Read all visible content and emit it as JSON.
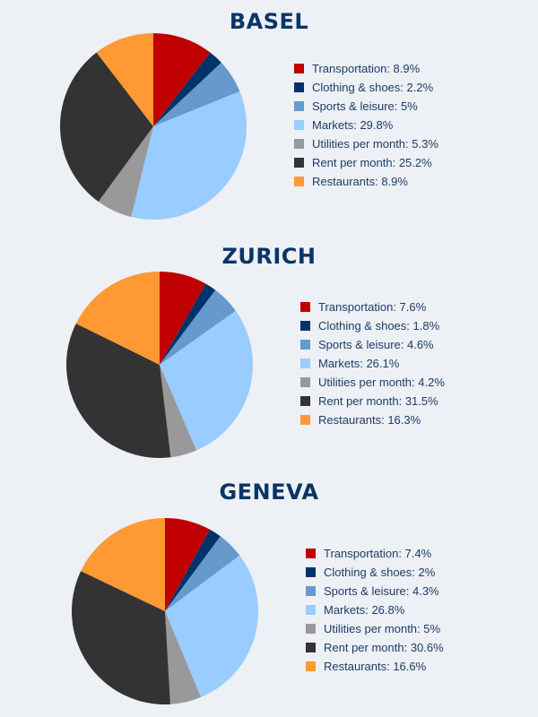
{
  "chart_data": [
    {
      "type": "pie",
      "title": "BASEL",
      "labels": [
        "Transportation",
        "Clothing & shoes",
        "Sports & leisure",
        "Markets",
        "Utilities per month",
        "Rent per month",
        "Restaurants"
      ],
      "values": [
        8.9,
        2.2,
        5,
        29.8,
        5.3,
        25.2,
        8.9
      ],
      "legend_texts": [
        "Transportation: 8.9%",
        "Clothing & shoes: 2.2%",
        "Sports & leisure: 5%",
        "Markets: 29.8%",
        "Utilities per month: 5.3%",
        "Rent per month: 25.2%",
        "Restaurants: 8.9%"
      ],
      "legend_position": "right"
    },
    {
      "type": "pie",
      "title": "ZURICH",
      "labels": [
        "Transportation",
        "Clothing & shoes",
        "Sports & leisure",
        "Markets",
        "Utilities per month",
        "Rent per month",
        "Restaurants"
      ],
      "values": [
        7.6,
        1.8,
        4.6,
        26.1,
        4.2,
        31.5,
        16.3
      ],
      "legend_texts": [
        "Transportation: 7.6%",
        "Clothing & shoes: 1.8%",
        "Sports & leisure: 4.6%",
        "Markets: 26.1%",
        "Utilities per month: 4.2%",
        "Rent per month: 31.5%",
        "Restaurants: 16.3%"
      ],
      "legend_position": "right"
    },
    {
      "type": "pie",
      "title": "GENEVA",
      "labels": [
        "Transportation",
        "Clothing & shoes",
        "Sports & leisure",
        "Markets",
        "Utilities per month",
        "Rent per month",
        "Restaurants"
      ],
      "values": [
        7.4,
        2,
        4.3,
        26.8,
        5,
        30.6,
        16.6
      ],
      "legend_texts": [
        "Transportation: 7.4%",
        "Clothing & shoes: 2%",
        "Sports & leisure: 4.3%",
        "Markets: 26.8%",
        "Utilities per month: 5%",
        "Rent per month: 30.6%",
        "Restaurants: 16.6%"
      ],
      "legend_position": "right"
    }
  ],
  "colors": [
    "#c00000",
    "#00336a",
    "#6699cc",
    "#99ccff",
    "#999999",
    "#333333",
    "#ff9933"
  ]
}
